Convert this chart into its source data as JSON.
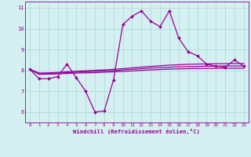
{
  "x_data": [
    0,
    1,
    2,
    3,
    4,
    5,
    6,
    7,
    8,
    9,
    10,
    11,
    12,
    13,
    14,
    15,
    16,
    17,
    18,
    19,
    20,
    21,
    22,
    23
  ],
  "y_main": [
    8.05,
    7.6,
    7.6,
    7.7,
    8.3,
    7.65,
    7.0,
    6.0,
    6.05,
    7.55,
    10.2,
    10.6,
    10.85,
    10.35,
    10.1,
    10.85,
    9.55,
    8.9,
    8.7,
    8.3,
    8.2,
    8.15,
    8.5,
    8.2
  ],
  "y_upper": [
    8.05,
    7.87,
    7.88,
    7.9,
    7.93,
    7.96,
    7.98,
    8.0,
    8.02,
    8.05,
    8.08,
    8.12,
    8.16,
    8.19,
    8.22,
    8.25,
    8.27,
    8.29,
    8.3,
    8.31,
    8.32,
    8.32,
    8.33,
    8.33
  ],
  "y_mid": [
    8.05,
    7.84,
    7.85,
    7.87,
    7.89,
    7.91,
    7.93,
    7.95,
    7.97,
    7.99,
    8.02,
    8.05,
    8.08,
    8.11,
    8.13,
    8.15,
    8.17,
    8.18,
    8.19,
    8.2,
    8.2,
    8.21,
    8.21,
    8.21
  ],
  "y_lower": [
    8.05,
    7.81,
    7.82,
    7.83,
    7.85,
    7.87,
    7.88,
    7.89,
    7.91,
    7.93,
    7.95,
    7.97,
    8.0,
    8.02,
    8.04,
    8.06,
    8.07,
    8.08,
    8.09,
    8.09,
    8.1,
    8.1,
    8.1,
    8.1
  ],
  "line_color": "#990099",
  "bg_color": "#d4f0f0",
  "grid_color": "#aad8d8",
  "xlabel": "Windchill (Refroidissement éolien,°C)",
  "ylim": [
    5.5,
    11.3
  ],
  "xlim": [
    -0.5,
    23.5
  ],
  "yticks": [
    6,
    7,
    8,
    9,
    10,
    11
  ],
  "xticks": [
    0,
    1,
    2,
    3,
    4,
    5,
    6,
    7,
    8,
    9,
    10,
    11,
    12,
    13,
    14,
    15,
    16,
    17,
    18,
    19,
    20,
    21,
    22,
    23
  ]
}
